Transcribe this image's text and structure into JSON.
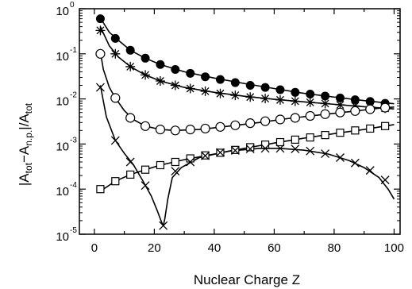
{
  "chart_data": {
    "type": "line",
    "xlabel": "Nuclear Charge Z",
    "ylabel": {
      "prefix": "|A",
      "sub1": "tot",
      "mid1": "−A",
      "sub2": "n.p.",
      "mid2": "|/A",
      "sub3": "tot"
    },
    "xlim": [
      -5,
      102
    ],
    "ylim": [
      1e-05,
      1
    ],
    "yscale": "log",
    "xticks": [
      0,
      20,
      40,
      60,
      80,
      100
    ],
    "xtick_labels": [
      "0",
      "20",
      "40",
      "60",
      "80",
      "100"
    ],
    "yticks": [
      1e-05,
      0.0001,
      0.001,
      0.01,
      0.1,
      1
    ],
    "ytick_labels": [
      {
        "base": "10",
        "exp": "-5"
      },
      {
        "base": "10",
        "exp": "-4"
      },
      {
        "base": "10",
        "exp": "-3"
      },
      {
        "base": "10",
        "exp": "-2"
      },
      {
        "base": "10",
        "exp": "-1"
      },
      {
        "base": "10",
        "exp": "0"
      }
    ],
    "grid": false,
    "series": [
      {
        "marker": "filled-circle",
        "color": "#000000",
        "points": [
          [
            2,
            0.6
          ],
          [
            7,
            0.22
          ],
          [
            12,
            0.12
          ],
          [
            17,
            0.08
          ],
          [
            22,
            0.058
          ],
          [
            27,
            0.045
          ],
          [
            32,
            0.037
          ],
          [
            37,
            0.031
          ],
          [
            42,
            0.027
          ],
          [
            47,
            0.023
          ],
          [
            52,
            0.02
          ],
          [
            57,
            0.018
          ],
          [
            62,
            0.016
          ],
          [
            67,
            0.014
          ],
          [
            72,
            0.0128
          ],
          [
            77,
            0.0116
          ],
          [
            82,
            0.0105
          ],
          [
            87,
            0.0096
          ],
          [
            92,
            0.0088
          ],
          [
            97,
            0.008
          ]
        ],
        "curve": [
          [
            2,
            0.62
          ],
          [
            5,
            0.3
          ],
          [
            8,
            0.2
          ],
          [
            12,
            0.12
          ],
          [
            17,
            0.08
          ],
          [
            22,
            0.058
          ],
          [
            30,
            0.04
          ],
          [
            40,
            0.029
          ],
          [
            50,
            0.022
          ],
          [
            60,
            0.017
          ],
          [
            70,
            0.0133
          ],
          [
            80,
            0.011
          ],
          [
            90,
            0.0092
          ],
          [
            100,
            0.0078
          ]
        ]
      },
      {
        "marker": "asterisk",
        "color": "#000000",
        "points": [
          [
            2,
            0.33
          ],
          [
            7,
            0.1
          ],
          [
            12,
            0.052
          ],
          [
            17,
            0.034
          ],
          [
            22,
            0.025
          ],
          [
            27,
            0.02
          ],
          [
            32,
            0.017
          ],
          [
            37,
            0.0148
          ],
          [
            42,
            0.0132
          ],
          [
            47,
            0.012
          ],
          [
            52,
            0.011
          ],
          [
            57,
            0.0102
          ],
          [
            62,
            0.0095
          ],
          [
            67,
            0.0089
          ],
          [
            72,
            0.0084
          ],
          [
            77,
            0.0079
          ],
          [
            82,
            0.0074
          ],
          [
            87,
            0.007
          ],
          [
            92,
            0.0066
          ],
          [
            97,
            0.0062
          ]
        ],
        "curve": [
          [
            2,
            0.4
          ],
          [
            5,
            0.15
          ],
          [
            8,
            0.085
          ],
          [
            12,
            0.052
          ],
          [
            17,
            0.034
          ],
          [
            22,
            0.025
          ],
          [
            30,
            0.018
          ],
          [
            40,
            0.014
          ],
          [
            50,
            0.0115
          ],
          [
            60,
            0.0098
          ],
          [
            70,
            0.0086
          ],
          [
            80,
            0.0076
          ],
          [
            90,
            0.0067
          ],
          [
            100,
            0.006
          ]
        ]
      },
      {
        "marker": "open-circle",
        "color": "#000000",
        "points": [
          [
            2,
            0.1
          ],
          [
            7,
            0.0105
          ],
          [
            12,
            0.0038
          ],
          [
            17,
            0.0025
          ],
          [
            22,
            0.0021
          ],
          [
            27,
            0.002
          ],
          [
            32,
            0.0021
          ],
          [
            37,
            0.0022
          ],
          [
            42,
            0.0024
          ],
          [
            47,
            0.0026
          ],
          [
            52,
            0.0029
          ],
          [
            57,
            0.0032
          ],
          [
            62,
            0.0035
          ],
          [
            67,
            0.0038
          ],
          [
            72,
            0.0042
          ],
          [
            77,
            0.0046
          ],
          [
            82,
            0.005
          ],
          [
            87,
            0.0054
          ],
          [
            92,
            0.0059
          ],
          [
            97,
            0.0064
          ]
        ],
        "curve": [
          [
            2,
            0.11
          ],
          [
            3,
            0.045
          ],
          [
            5,
            0.018
          ],
          [
            7,
            0.0105
          ],
          [
            10,
            0.0055
          ],
          [
            13,
            0.0035
          ],
          [
            17,
            0.0025
          ],
          [
            22,
            0.0021
          ],
          [
            27,
            0.002
          ],
          [
            35,
            0.0021
          ],
          [
            45,
            0.0025
          ],
          [
            55,
            0.003
          ],
          [
            65,
            0.0037
          ],
          [
            75,
            0.0044
          ],
          [
            85,
            0.0052
          ],
          [
            95,
            0.0062
          ],
          [
            100,
            0.0066
          ]
        ]
      },
      {
        "marker": "open-square",
        "color": "#000000",
        "points": [
          [
            2,
            0.0001
          ],
          [
            7,
            0.00015
          ],
          [
            12,
            0.00021
          ],
          [
            17,
            0.00027
          ],
          [
            22,
            0.00034
          ],
          [
            27,
            0.0004
          ],
          [
            32,
            0.00048
          ],
          [
            37,
            0.00056
          ],
          [
            42,
            0.00064
          ],
          [
            47,
            0.00074
          ],
          [
            52,
            0.00085
          ],
          [
            57,
            0.00097
          ],
          [
            62,
            0.0011
          ],
          [
            67,
            0.00125
          ],
          [
            72,
            0.0014
          ],
          [
            77,
            0.00158
          ],
          [
            82,
            0.00178
          ],
          [
            87,
            0.002
          ],
          [
            92,
            0.0022
          ],
          [
            97,
            0.0025
          ]
        ],
        "curve": [
          [
            2,
            9e-05
          ],
          [
            7,
            0.00015
          ],
          [
            12,
            0.00021
          ],
          [
            17,
            0.00027
          ],
          [
            22,
            0.00034
          ],
          [
            30,
            0.00045
          ],
          [
            40,
            0.0006
          ],
          [
            50,
            0.0008
          ],
          [
            60,
            0.00105
          ],
          [
            70,
            0.00135
          ],
          [
            80,
            0.0017
          ],
          [
            90,
            0.0021
          ],
          [
            100,
            0.0027
          ]
        ]
      },
      {
        "marker": "cross",
        "color": "#000000",
        "points": [
          [
            2,
            0.018
          ],
          [
            7,
            0.0012
          ],
          [
            12,
            0.0004
          ],
          [
            17,
            0.00012
          ],
          [
            23,
            1.55e-05
          ],
          [
            27,
            0.00025
          ],
          [
            32,
            0.0004
          ],
          [
            37,
            0.00055
          ],
          [
            42,
            0.00065
          ],
          [
            47,
            0.00072
          ],
          [
            52,
            0.00078
          ],
          [
            57,
            0.0008
          ],
          [
            62,
            0.0008
          ],
          [
            67,
            0.00078
          ],
          [
            72,
            0.0007
          ],
          [
            77,
            0.00061
          ],
          [
            82,
            0.0005
          ],
          [
            87,
            0.00038
          ],
          [
            92,
            0.00026
          ],
          [
            97,
            0.00016
          ]
        ],
        "curve": [
          [
            2,
            0.02
          ],
          [
            4,
            0.004
          ],
          [
            7,
            0.0012
          ],
          [
            10,
            0.00062
          ],
          [
            13,
            0.00035
          ],
          [
            16,
            0.00016
          ],
          [
            19,
            7e-05
          ],
          [
            21,
            3.3e-05
          ],
          [
            22.5,
            1.8e-05
          ],
          [
            23,
            1.55e-05
          ],
          [
            23.5,
            2.2e-05
          ],
          [
            24.5,
            6e-05
          ],
          [
            26,
            0.00018
          ],
          [
            29,
            0.0003
          ],
          [
            35,
            0.0005
          ],
          [
            45,
            0.0007
          ],
          [
            55,
            0.0008
          ],
          [
            62,
            0.0008
          ],
          [
            70,
            0.00073
          ],
          [
            78,
            0.0006
          ],
          [
            85,
            0.00043
          ],
          [
            90,
            0.0003
          ],
          [
            95,
            0.00018
          ],
          [
            98,
            0.0001
          ],
          [
            100,
            6e-05
          ]
        ]
      }
    ]
  }
}
